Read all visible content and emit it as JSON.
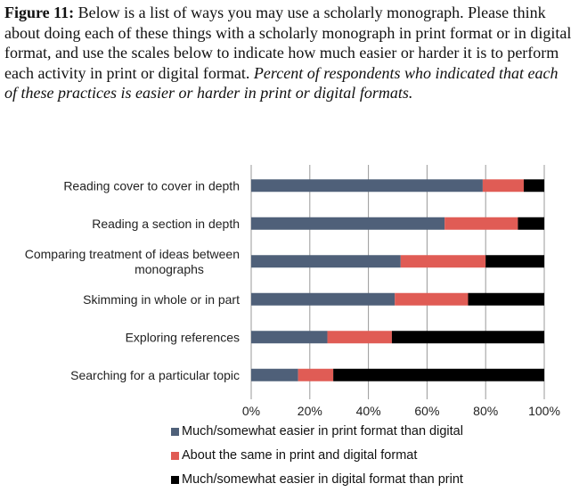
{
  "caption": {
    "figure_label": "Figure 11:",
    "text": " Below is a list of ways you may use a scholarly monograph. Please think about doing each of these things with a scholarly monograph in print format or in digital format, and use the scales below to indicate how much easier or harder it is to perform each activity in print or digital format. ",
    "italic_text": "Percent of respondents who indicated that each of these practices is easier or harder in print or digital formats."
  },
  "chart_data": {
    "type": "bar",
    "orientation": "horizontal",
    "stacked": true,
    "categories": [
      [
        "Reading cover to cover in depth"
      ],
      [
        "Reading a section in depth"
      ],
      [
        "Comparing treatment of ideas between",
        "monographs"
      ],
      [
        "Skimming in whole or in part"
      ],
      [
        "Exploring references"
      ],
      [
        "Searching for a particular topic"
      ]
    ],
    "series": [
      {
        "name": "Much/somewhat easier in print format than digital",
        "color": "#4f6079",
        "values": [
          79,
          66,
          51,
          49,
          26,
          16
        ]
      },
      {
        "name": "About the same in print and digital format",
        "color": "#e05c55",
        "values": [
          14,
          25,
          29,
          25,
          22,
          12
        ]
      },
      {
        "name": "Much/somewhat easier in digital format than print",
        "color": "#000000",
        "values": [
          7,
          9,
          20,
          26,
          52,
          72
        ]
      }
    ],
    "xlim": [
      0,
      100
    ],
    "xticks": [
      "0%",
      "20%",
      "40%",
      "60%",
      "80%",
      "100%"
    ],
    "grid": true,
    "legend_position": "bottom"
  }
}
